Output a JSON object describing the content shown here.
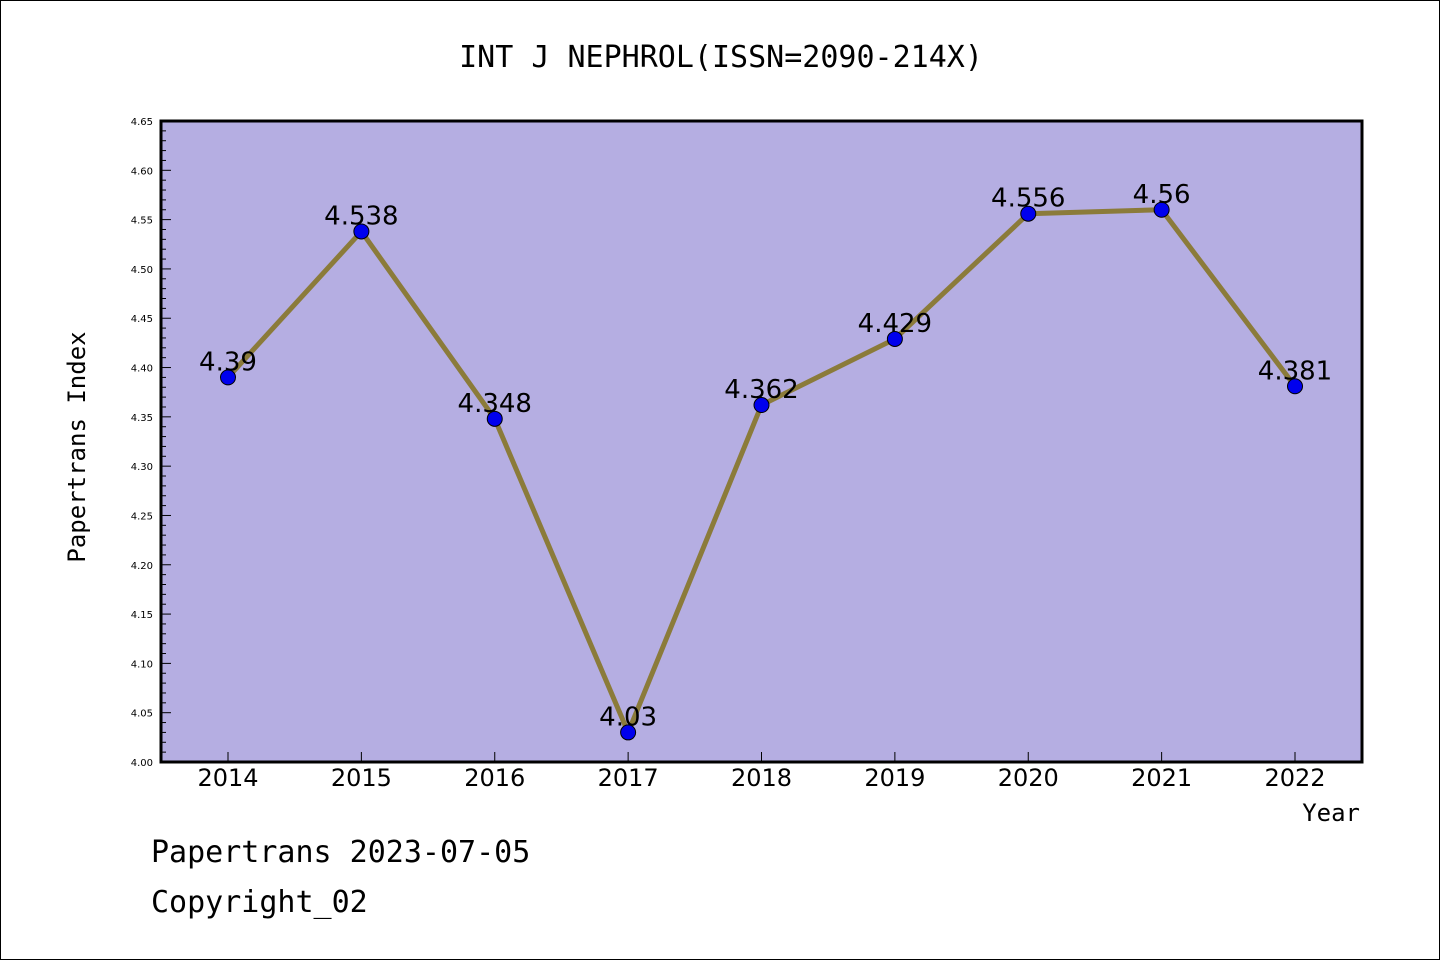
{
  "chart_data": {
    "type": "line",
    "title": "INT J NEPHROL(ISSN=2090-214X)",
    "xlabel": "Year",
    "ylabel": "Papertrans Index",
    "categories": [
      "2014",
      "2015",
      "2016",
      "2017",
      "2018",
      "2019",
      "2020",
      "2021",
      "2022"
    ],
    "series": [
      {
        "values": [
          4.39,
          4.538,
          4.348,
          4.03,
          4.362,
          4.429,
          4.556,
          4.56,
          4.381
        ],
        "labels": [
          "4.39",
          "4.538",
          "4.348",
          "4.03",
          "4.362",
          "4.429",
          "4.556",
          "4.56",
          "4.381"
        ]
      }
    ],
    "ylim": [
      4.0,
      4.65
    ],
    "yticks": [
      "4.00",
      "4.05",
      "4.10",
      "4.15",
      "4.20",
      "4.25",
      "4.30",
      "4.35",
      "4.40",
      "4.45",
      "4.50",
      "4.55",
      "4.60",
      "4.65"
    ],
    "grid": false,
    "colors": {
      "plot_background": "#b5aee2",
      "line": "#8b7b3a",
      "marker": "#0000ee"
    }
  },
  "footer": {
    "line1": "Papertrans 2023-07-05",
    "line2": "Copyright_02"
  }
}
